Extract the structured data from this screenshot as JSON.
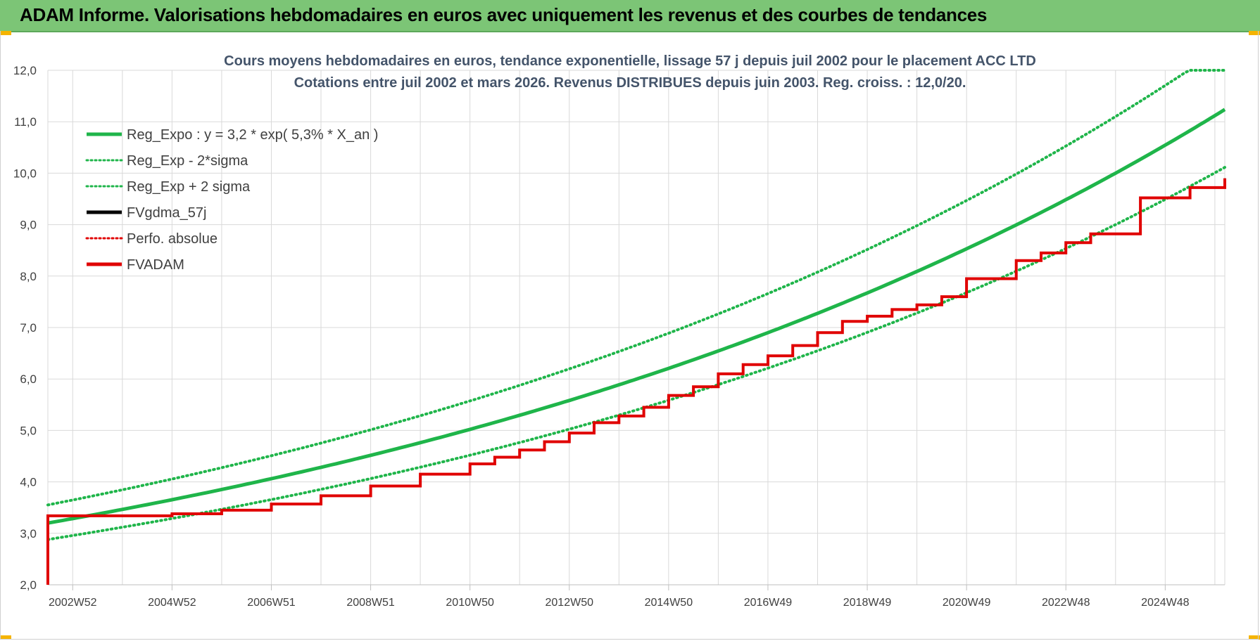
{
  "header": {
    "title": "ADAM Informe. Valorisations hebdomadaires en euros avec uniquement les revenus et des courbes de tendances"
  },
  "chart_data": {
    "type": "line",
    "title": "Cours moyens hebdomadaires en euros, tendance exponentielle, lissage 57 j depuis juil 2002 pour le placement ACC LTD",
    "subtitle": "Cotations entre juil 2002 et mars 2026. Revenus DISTRIBUES depuis juin 2003. Reg. croiss. : 12,0/20.",
    "ylim": [
      2.0,
      12.0
    ],
    "y_ticks": [
      "2,0",
      "3,0",
      "4,0",
      "5,0",
      "6,0",
      "7,0",
      "8,0",
      "9,0",
      "10,0",
      "11,0",
      "12,0"
    ],
    "x_tick_labels": [
      "2002W52",
      "2004W52",
      "2006W51",
      "2008W51",
      "2010W50",
      "2012W50",
      "2014W50",
      "2016W49",
      "2018W49",
      "2020W49",
      "2022W48",
      "2024W48"
    ],
    "x_tick_years": [
      2003.0,
      2005.0,
      2007.0,
      2009.0,
      2011.0,
      2013.0,
      2015.0,
      2017.0,
      2019.0,
      2021.0,
      2023.0,
      2025.0
    ],
    "xlim": [
      2002.5,
      2026.2
    ],
    "grid": true,
    "legend_position": "top-left",
    "regression": {
      "a": 3.2,
      "rate": 0.053,
      "x_start": 2002.5,
      "band_factor_low": 0.9,
      "band_factor_high": 1.11,
      "band_cap": 12.0
    },
    "series": [
      {
        "name": "Reg_Expo : y = 3,2 * exp( 5,3% *  X_an )",
        "color": "#1fb54a",
        "style": "solid",
        "kind": "reg"
      },
      {
        "name": "Reg_Exp - 2*sigma",
        "color": "#1fb54a",
        "style": "dotted",
        "kind": "reg_low"
      },
      {
        "name": "Reg_Exp + 2 sigma",
        "color": "#1fb54a",
        "style": "dotted",
        "kind": "reg_high"
      },
      {
        "name": "FVgdma_57j",
        "color": "#000000",
        "style": "solid",
        "kind": "steps"
      },
      {
        "name": "Perfo. absolue",
        "color": "#e00000",
        "style": "dotted",
        "kind": "steps"
      },
      {
        "name": "FVADAM",
        "color": "#e00000",
        "style": "solid",
        "kind": "steps"
      }
    ],
    "fvadam_steps": [
      [
        2002.5,
        2.0
      ],
      [
        2002.5,
        3.34
      ],
      [
        2005.0,
        3.38
      ],
      [
        2006.0,
        3.45
      ],
      [
        2007.0,
        3.57
      ],
      [
        2008.0,
        3.73
      ],
      [
        2009.0,
        3.92
      ],
      [
        2010.0,
        4.15
      ],
      [
        2011.0,
        4.35
      ],
      [
        2011.5,
        4.48
      ],
      [
        2012.0,
        4.62
      ],
      [
        2012.5,
        4.78
      ],
      [
        2013.0,
        4.95
      ],
      [
        2013.5,
        5.15
      ],
      [
        2014.0,
        5.28
      ],
      [
        2014.5,
        5.45
      ],
      [
        2015.0,
        5.68
      ],
      [
        2015.5,
        5.85
      ],
      [
        2016.0,
        6.1
      ],
      [
        2016.5,
        6.28
      ],
      [
        2017.0,
        6.45
      ],
      [
        2017.5,
        6.65
      ],
      [
        2018.0,
        6.9
      ],
      [
        2018.5,
        7.12
      ],
      [
        2019.0,
        7.22
      ],
      [
        2019.5,
        7.35
      ],
      [
        2020.0,
        7.44
      ],
      [
        2020.5,
        7.6
      ],
      [
        2021.0,
        7.95
      ],
      [
        2022.0,
        8.3
      ],
      [
        2022.5,
        8.45
      ],
      [
        2023.0,
        8.65
      ],
      [
        2023.5,
        8.82
      ],
      [
        2024.5,
        9.52
      ],
      [
        2025.5,
        9.72
      ],
      [
        2026.2,
        9.9
      ]
    ]
  }
}
